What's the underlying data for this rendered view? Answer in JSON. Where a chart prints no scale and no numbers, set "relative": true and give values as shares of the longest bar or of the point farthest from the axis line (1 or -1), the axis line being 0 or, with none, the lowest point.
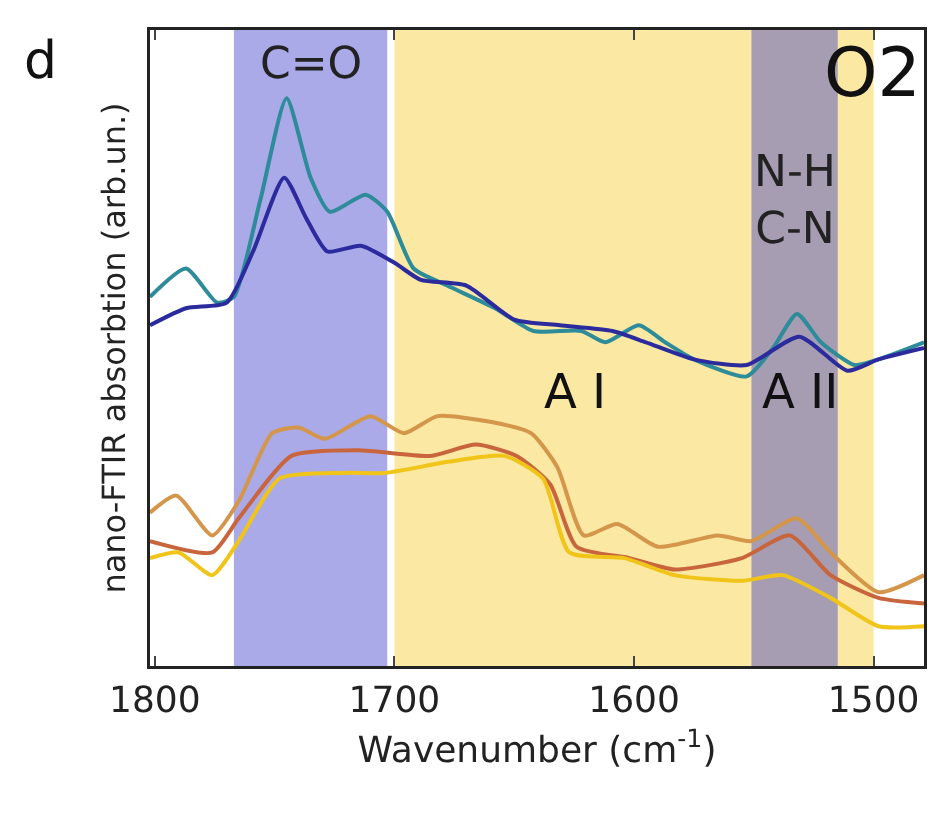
{
  "chart_data": {
    "type": "line",
    "relative": true,
    "xlabel": "Wavenumber (cm$^{-1}$)",
    "ylabel": "nano-FTIR absorbtion (arb.un.)",
    "xlim": [
      1802,
      1479
    ],
    "xticks": [
      1800,
      1700,
      1600,
      1500
    ],
    "annotations": [
      "d",
      "O2",
      "A I",
      "A II"
    ],
    "bands": [
      {
        "axis": "x",
        "from": 1767,
        "to": 1703,
        "label": "C=O",
        "color": "#aaaae8"
      },
      {
        "axis": "x",
        "from": 1700,
        "to": 1500,
        "color": "#fbe8a2"
      },
      {
        "axis": "x",
        "from": 1551,
        "to": 1515,
        "label": "N-H\nC-N",
        "color": "#a69db2"
      }
    ],
    "series": [
      {
        "color": "#2e8b9a",
        "x": [
          1802,
          1787,
          1774,
          1767,
          1756,
          1745,
          1735,
          1727,
          1712,
          1703,
          1692,
          1678,
          1658,
          1642,
          1622,
          1612,
          1598,
          1587,
          1575,
          1553,
          1542,
          1532,
          1522,
          1508,
          1498,
          1479
        ],
        "values": [
          0.65,
          0.7,
          0.64,
          0.65,
          0.82,
          1,
          0.86,
          0.8,
          0.83,
          0.8,
          0.7,
          0.67,
          0.63,
          0.59,
          0.59,
          0.57,
          0.6,
          0.57,
          0.54,
          0.51,
          0.56,
          0.62,
          0.57,
          0.53,
          0.54,
          0.57
        ]
      },
      {
        "color": "#2b2b9e",
        "x": [
          1802,
          1787,
          1770,
          1759,
          1746,
          1737,
          1728,
          1714,
          1700,
          1689,
          1670,
          1650,
          1631,
          1609,
          1595,
          1575,
          1553,
          1531,
          1511,
          1498,
          1479
        ],
        "values": [
          0.6,
          0.63,
          0.64,
          0.73,
          0.86,
          0.79,
          0.73,
          0.74,
          0.71,
          0.68,
          0.67,
          0.61,
          0.6,
          0.59,
          0.57,
          0.54,
          0.53,
          0.58,
          0.52,
          0.54,
          0.56
        ]
      },
      {
        "color": "#d4964a",
        "x": [
          1802,
          1791,
          1776,
          1765,
          1751,
          1740,
          1729,
          1710,
          1696,
          1682,
          1660,
          1643,
          1632,
          1621,
          1607,
          1590,
          1565,
          1551,
          1532,
          1518,
          1498,
          1479
        ],
        "values": [
          0.27,
          0.3,
          0.23,
          0.29,
          0.41,
          0.42,
          0.4,
          0.44,
          0.41,
          0.44,
          0.43,
          0.41,
          0.35,
          0.23,
          0.25,
          0.21,
          0.23,
          0.22,
          0.26,
          0.2,
          0.13,
          0.16
        ]
      },
      {
        "color": "#c8653c",
        "x": [
          1802,
          1776,
          1765,
          1743,
          1715,
          1685,
          1666,
          1649,
          1635,
          1624,
          1602,
          1583,
          1555,
          1535,
          1518,
          1498,
          1479
        ],
        "values": [
          0.22,
          0.2,
          0.26,
          0.37,
          0.38,
          0.37,
          0.39,
          0.37,
          0.32,
          0.21,
          0.19,
          0.17,
          0.19,
          0.23,
          0.16,
          0.12,
          0.11
        ]
      },
      {
        "color": "#f0c419",
        "x": [
          1802,
          1790,
          1776,
          1765,
          1748,
          1721,
          1704,
          1677,
          1654,
          1638,
          1627,
          1604,
          1583,
          1555,
          1538,
          1518,
          1498,
          1479
        ],
        "values": [
          0.19,
          0.2,
          0.16,
          0.22,
          0.33,
          0.34,
          0.34,
          0.36,
          0.37,
          0.33,
          0.2,
          0.19,
          0.16,
          0.15,
          0.16,
          0.12,
          0.07,
          0.07
        ]
      }
    ]
  }
}
